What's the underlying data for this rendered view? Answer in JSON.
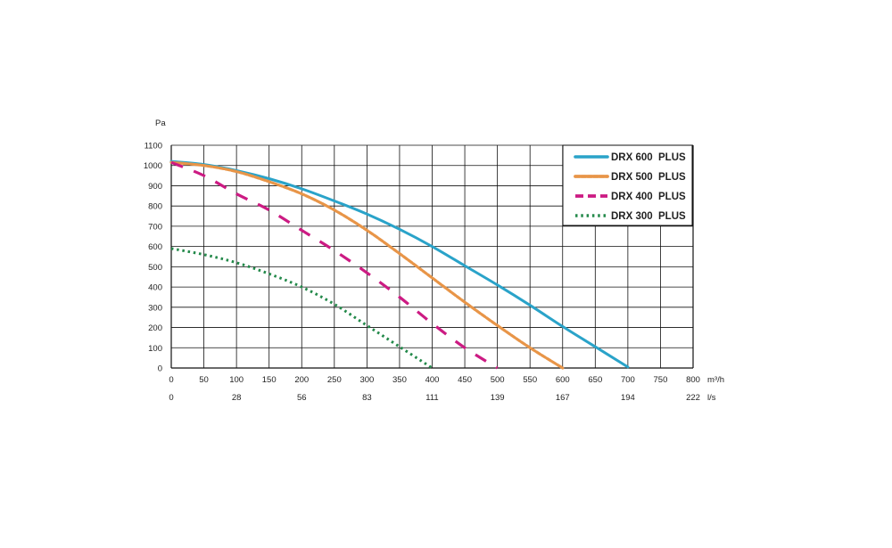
{
  "chart_data": {
    "type": "line",
    "ylabel": "Pa",
    "ylim": [
      0,
      1100
    ],
    "yticks": [
      "0",
      "100",
      "200",
      "300",
      "400",
      "500",
      "600",
      "700",
      "800",
      "900",
      "1000",
      "1100"
    ],
    "xlim": [
      0,
      800
    ],
    "xticks_m3h": [
      "0",
      "50",
      "100",
      "150",
      "200",
      "250",
      "300",
      "350",
      "400",
      "450",
      "500",
      "550",
      "600",
      "650",
      "700",
      "750",
      "800"
    ],
    "x_unit_m3h": "m³/h",
    "xticks_ls": [
      {
        "x": 0,
        "label": "0"
      },
      {
        "x": 100,
        "label": "28"
      },
      {
        "x": 200,
        "label": "56"
      },
      {
        "x": 300,
        "label": "83"
      },
      {
        "x": 400,
        "label": "111"
      },
      {
        "x": 500,
        "label": "139"
      },
      {
        "x": 600,
        "label": "167"
      },
      {
        "x": 700,
        "label": "194"
      },
      {
        "x": 800,
        "label": "222"
      }
    ],
    "x_unit_ls": "l/s",
    "grid": true,
    "legend_position": "top-right",
    "series": [
      {
        "name": "DRX 600",
        "suffix": "PLUS",
        "color": "#2aa3c9",
        "style": "solid",
        "points": [
          [
            0,
            1020
          ],
          [
            50,
            1005
          ],
          [
            100,
            975
          ],
          [
            150,
            935
          ],
          [
            200,
            885
          ],
          [
            250,
            825
          ],
          [
            300,
            760
          ],
          [
            350,
            685
          ],
          [
            400,
            600
          ],
          [
            450,
            505
          ],
          [
            500,
            410
          ],
          [
            550,
            310
          ],
          [
            600,
            205
          ],
          [
            650,
            105
          ],
          [
            700,
            5
          ]
        ]
      },
      {
        "name": "DRX 500",
        "suffix": "PLUS",
        "color": "#e89548",
        "style": "dots",
        "points": [
          [
            0,
            1015
          ],
          [
            50,
            1000
          ],
          [
            100,
            970
          ],
          [
            150,
            920
          ],
          [
            200,
            860
          ],
          [
            250,
            780
          ],
          [
            300,
            680
          ],
          [
            350,
            565
          ],
          [
            400,
            445
          ],
          [
            450,
            325
          ],
          [
            500,
            210
          ],
          [
            550,
            100
          ],
          [
            600,
            0
          ]
        ]
      },
      {
        "name": "DRX 400",
        "suffix": "PLUS",
        "color": "#cc1b83",
        "style": "dash",
        "points": [
          [
            0,
            1015
          ],
          [
            50,
            950
          ],
          [
            100,
            860
          ],
          [
            150,
            780
          ],
          [
            200,
            680
          ],
          [
            250,
            580
          ],
          [
            300,
            470
          ],
          [
            350,
            350
          ],
          [
            400,
            220
          ],
          [
            450,
            100
          ],
          [
            500,
            0
          ]
        ]
      },
      {
        "name": "DRX 300",
        "suffix": "PLUS",
        "color": "#23894a",
        "style": "dotted",
        "points": [
          [
            0,
            590
          ],
          [
            50,
            560
          ],
          [
            100,
            520
          ],
          [
            150,
            465
          ],
          [
            200,
            400
          ],
          [
            250,
            315
          ],
          [
            300,
            210
          ],
          [
            350,
            105
          ],
          [
            400,
            0
          ]
        ]
      }
    ]
  }
}
